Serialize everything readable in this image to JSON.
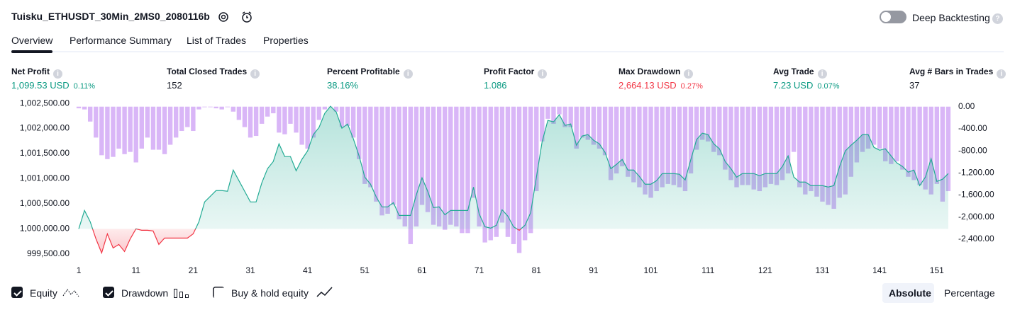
{
  "header": {
    "title": "Tuisku_ETHUSDT_30Min_2MS0_2080116b",
    "toggle_label": "Deep Backtesting"
  },
  "tabs": [
    "Overview",
    "Performance Summary",
    "List of Trades",
    "Properties"
  ],
  "stats": [
    {
      "label": "Net Profit",
      "value": "1,099.53 USD",
      "percent": "0.11%",
      "tone": "positive"
    },
    {
      "label": "Total Closed Trades",
      "value": "152",
      "tone": "neutral"
    },
    {
      "label": "Percent Profitable",
      "value": "38.16%",
      "tone": "positive"
    },
    {
      "label": "Profit Factor",
      "value": "1.086",
      "tone": "positive"
    },
    {
      "label": "Max Drawdown",
      "value": "2,664.13 USD",
      "percent": "0.27%",
      "tone": "negative"
    },
    {
      "label": "Avg Trade",
      "value": "7.23 USD",
      "percent": "0.07%",
      "tone": "positive"
    },
    {
      "label": "Avg # Bars in Trades",
      "value": "37",
      "tone": "neutral"
    }
  ],
  "chart_data": {
    "type": "line",
    "x": [
      1,
      2,
      3,
      4,
      5,
      6,
      7,
      8,
      9,
      10,
      11,
      12,
      13,
      14,
      15,
      16,
      17,
      18,
      19,
      20,
      21,
      22,
      23,
      24,
      25,
      26,
      27,
      28,
      29,
      30,
      31,
      32,
      33,
      34,
      35,
      36,
      37,
      38,
      39,
      40,
      41,
      42,
      43,
      44,
      45,
      46,
      47,
      48,
      49,
      50,
      51,
      52,
      53,
      54,
      55,
      56,
      57,
      58,
      59,
      60,
      61,
      62,
      63,
      64,
      65,
      66,
      67,
      68,
      69,
      70,
      71,
      72,
      73,
      74,
      75,
      76,
      77,
      78,
      79,
      80,
      81,
      82,
      83,
      84,
      85,
      86,
      87,
      88,
      89,
      90,
      91,
      92,
      93,
      94,
      95,
      96,
      97,
      98,
      99,
      100,
      101,
      102,
      103,
      104,
      105,
      106,
      107,
      108,
      109,
      110,
      111,
      112,
      113,
      114,
      115,
      116,
      117,
      118,
      119,
      120,
      121,
      122,
      123,
      124,
      125,
      126,
      127,
      128,
      129,
      130,
      131,
      132,
      133,
      134,
      135,
      136,
      137,
      138,
      139,
      140,
      141,
      142,
      143,
      144,
      145,
      146,
      147,
      148,
      149,
      150,
      151,
      152,
      153
    ],
    "series": [
      {
        "name": "Equity",
        "color": "#22ab94",
        "negative_color": "#f23645",
        "values": [
          1000000,
          1000367,
          1000141,
          999802,
          999520,
          999901,
          999619,
          999689,
          999548,
          999802,
          1000000,
          999972,
          999972,
          999958,
          999689,
          999816,
          999816,
          999816,
          999816,
          999816,
          999901,
          1000141,
          1000537,
          1000650,
          1000763,
          1000763,
          1000749,
          1001172,
          1000960,
          1000749,
          1000537,
          1000537,
          1000918,
          1001200,
          1001342,
          1001695,
          1001441,
          1001441,
          1001158,
          1001384,
          1001554,
          1001879,
          1002020,
          1002302,
          1002443,
          1002330,
          1002006,
          1002090,
          1001794,
          1001455,
          1001031,
          1000890,
          1000636,
          1000438,
          1000438,
          1000523,
          1000268,
          1000268,
          1000268,
          1000678,
          1001017,
          1000749,
          1000424,
          1000438,
          1000282,
          1000367,
          1000367,
          1000367,
          1000367,
          1000833,
          1000297,
          1000042,
          1000014,
          1000071,
          1000381,
          1000254,
          1000042,
          999972,
          1000071,
          1000325,
          1001031,
          1001737,
          1002161,
          1002133,
          1002274,
          1002062,
          1002090,
          1001667,
          1001850,
          1001879,
          1001765,
          1001695,
          1001525,
          1001200,
          1001285,
          1001384,
          1001172,
          1001172,
          1001045,
          1000890,
          1000890,
          1000960,
          1001102,
          1001102,
          1001102,
          1001088,
          1000975,
          1001384,
          1001780,
          1001907,
          1001879,
          1001695,
          1001596,
          1001342,
          1001200,
          1001031,
          1001102,
          1001102,
          1001102,
          1001059,
          1001102,
          1001102,
          1001102,
          1001243,
          1001455,
          1001031,
          1000932,
          1000932,
          1000862,
          1000862,
          1000862,
          1000833,
          1000862,
          1001243,
          1001554,
          1001667,
          1001765,
          1001879,
          1001879,
          1001624,
          1001568,
          1001596,
          1001455,
          1001314,
          1001243,
          1001130,
          1001172,
          1000862,
          1001031,
          1001398,
          1000946,
          1000989,
          1001102
        ]
      },
      {
        "name": "Drawdown",
        "type": "bar",
        "axis": "y2",
        "color": "#d9b6f7",
        "values": [
          -30,
          -50,
          -270,
          -560,
          -880,
          -950,
          -910,
          -760,
          -860,
          -820,
          -1010,
          -760,
          -560,
          -780,
          -780,
          -860,
          -690,
          -560,
          -440,
          -370,
          -440,
          -50,
          -10,
          -10,
          -30,
          -50,
          -10,
          -90,
          -240,
          -370,
          -560,
          -530,
          -310,
          -180,
          -120,
          -470,
          -500,
          -310,
          -470,
          -690,
          -760,
          -560,
          -240,
          -50,
          0,
          -90,
          -370,
          -350,
          -560,
          -950,
          -1400,
          -1460,
          -1720,
          -1970,
          -1940,
          -1780,
          -2040,
          -2170,
          -2490,
          -2170,
          -1780,
          -1910,
          -2140,
          -2170,
          -2230,
          -2140,
          -2170,
          -2290,
          -2290,
          -1650,
          -2170,
          -2460,
          -2420,
          -2360,
          -2100,
          -2360,
          -2490,
          -2650,
          -2420,
          -2290,
          -1530,
          -630,
          -220,
          -310,
          -140,
          -370,
          -370,
          -760,
          -560,
          -600,
          -690,
          -760,
          -880,
          -1330,
          -1210,
          -1080,
          -1270,
          -1370,
          -1460,
          -1590,
          -1650,
          -1530,
          -1460,
          -1400,
          -1420,
          -1460,
          -1530,
          -1210,
          -780,
          -600,
          -630,
          -820,
          -880,
          -1140,
          -1330,
          -1460,
          -1420,
          -1420,
          -1500,
          -1530,
          -1460,
          -1400,
          -1420,
          -1330,
          -1210,
          -820,
          -1460,
          -1590,
          -1530,
          -1630,
          -1720,
          -1780,
          -1850,
          -1650,
          -1590,
          -1270,
          -1010,
          -820,
          -760,
          -690,
          -760,
          -990,
          -1040,
          -990,
          -1140,
          -1270,
          -1330,
          -1420,
          -1500,
          -1590,
          -1400,
          -1720,
          -1530
        ]
      }
    ],
    "xlim": [
      0,
      154
    ],
    "xticks": [
      1,
      11,
      21,
      31,
      41,
      51,
      61,
      71,
      81,
      91,
      101,
      111,
      121,
      131,
      141,
      151
    ],
    "ylim": [
      999300,
      1002600
    ],
    "yticks": [
      {
        "value": 1002500,
        "label": "1,002,500.00"
      },
      {
        "value": 1002000,
        "label": "1,002,000.00"
      },
      {
        "value": 1001500,
        "label": "1,001,500.00"
      },
      {
        "value": 1001000,
        "label": "1,001,000.00"
      },
      {
        "value": 1000500,
        "label": "1,000,500.00"
      },
      {
        "value": 1000000,
        "label": "1,000,000.00"
      },
      {
        "value": 999500,
        "label": "999,500.00"
      }
    ],
    "y2lim": [
      -2850,
      150
    ],
    "y2ticks": [
      {
        "value": 0,
        "label": "0.00"
      },
      {
        "value": -400,
        "label": "-400.00"
      },
      {
        "value": -800,
        "label": "-800.00"
      },
      {
        "value": -1200,
        "label": "-1,200.00"
      },
      {
        "value": -1600,
        "label": "-1,600.00"
      },
      {
        "value": -2000,
        "label": "-2,000.00"
      },
      {
        "value": -2400,
        "label": "-2,400.00"
      }
    ],
    "grid": false
  },
  "controls": {
    "buy_hold": "Buy & hold equity",
    "modes": [
      "Absolute",
      "Percentage"
    ]
  }
}
